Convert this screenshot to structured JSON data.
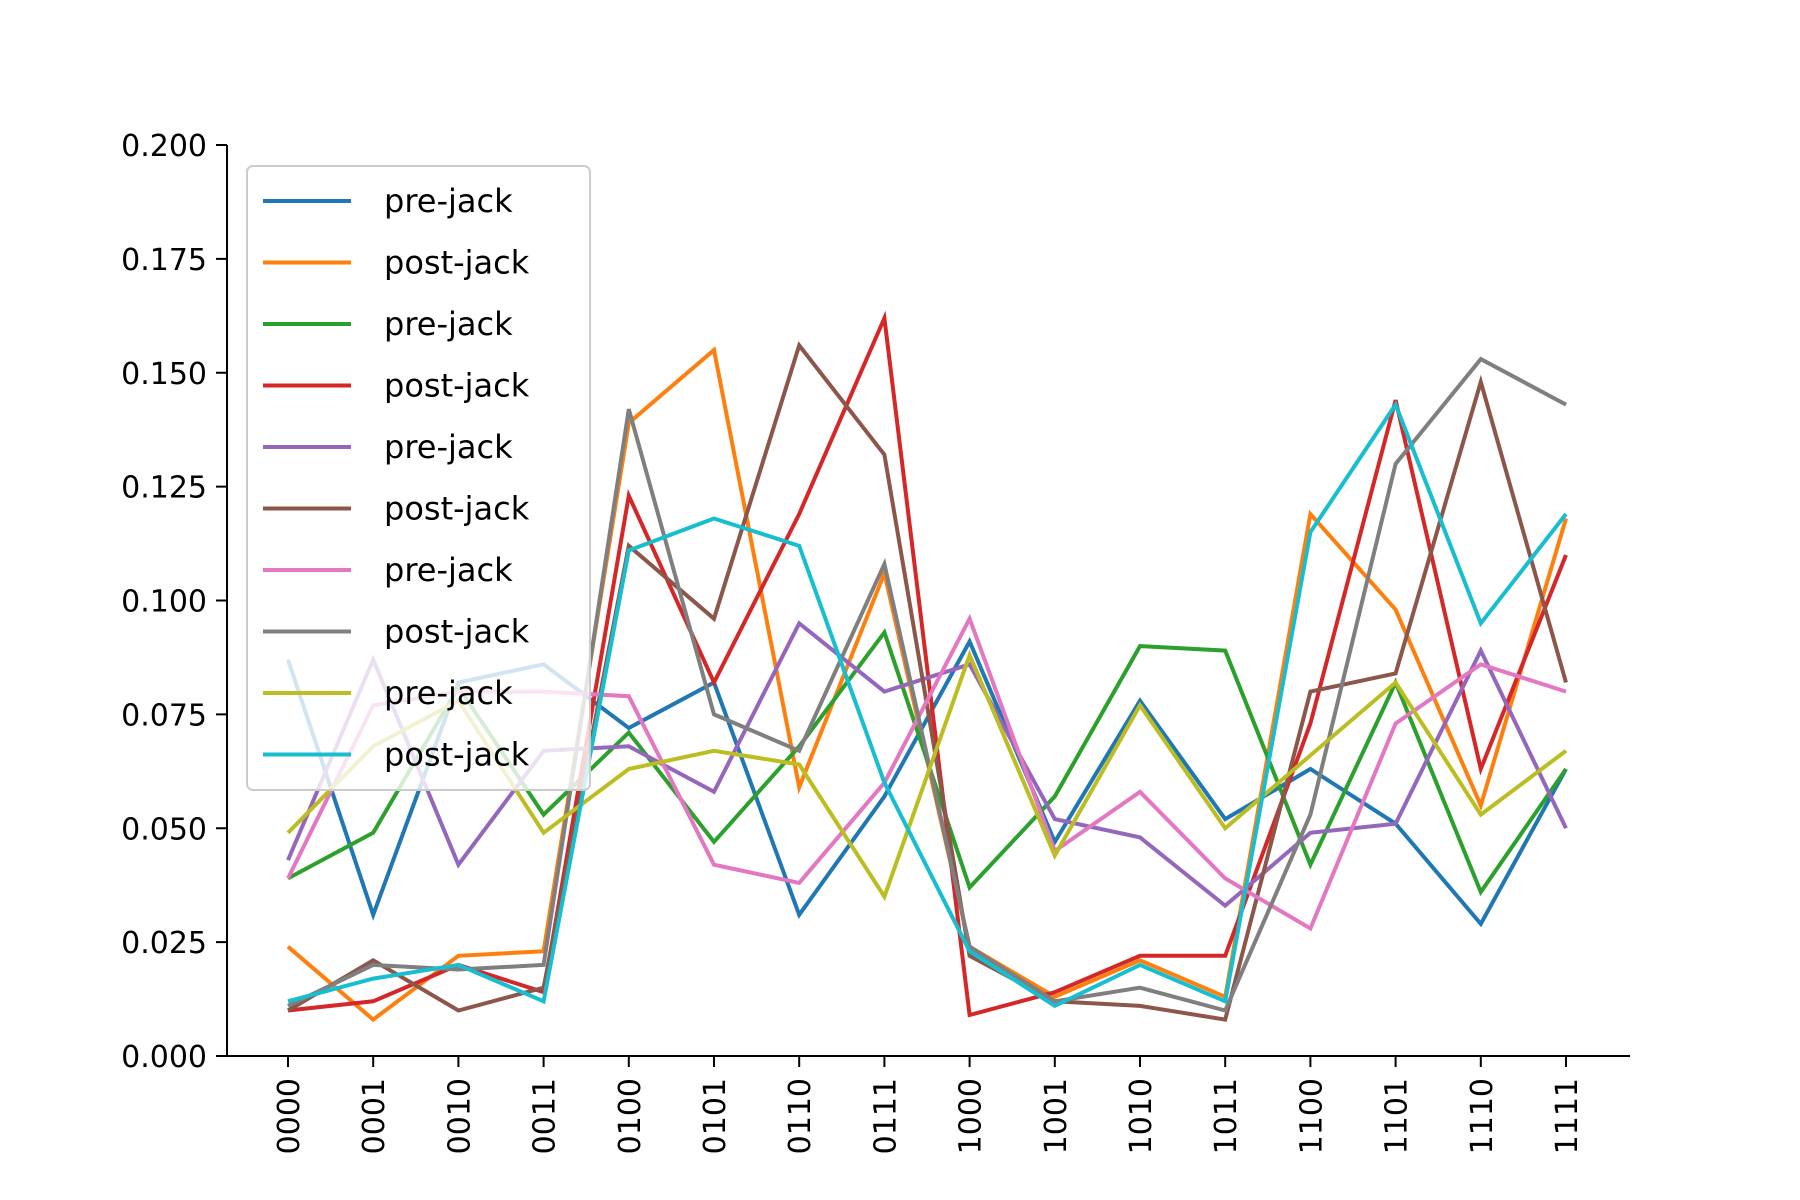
{
  "chart_data": {
    "type": "line",
    "title": "",
    "xlabel": "",
    "ylabel": "",
    "ylim": [
      0,
      0.2
    ],
    "yticks": [
      "0.000",
      "0.025",
      "0.050",
      "0.075",
      "0.100",
      "0.125",
      "0.150",
      "0.175",
      "0.200"
    ],
    "categories": [
      "0000",
      "0001",
      "0010",
      "0011",
      "0100",
      "0101",
      "0110",
      "0111",
      "1000",
      "1001",
      "1010",
      "1011",
      "1100",
      "1101",
      "1110",
      "1111"
    ],
    "grid": false,
    "legend_position": "upper-left",
    "series": [
      {
        "name": "pre-jack",
        "color": "#1f77b4",
        "values": [
          0.087,
          0.031,
          0.082,
          0.086,
          0.072,
          0.082,
          0.031,
          0.057,
          0.091,
          0.047,
          0.078,
          0.052,
          0.063,
          0.051,
          0.029,
          0.063
        ]
      },
      {
        "name": "post-jack",
        "color": "#ff7f0e",
        "values": [
          0.024,
          0.008,
          0.022,
          0.023,
          0.139,
          0.155,
          0.059,
          0.106,
          0.024,
          0.013,
          0.021,
          0.013,
          0.119,
          0.098,
          0.055,
          0.118
        ]
      },
      {
        "name": "pre-jack",
        "color": "#2ca02c",
        "values": [
          0.039,
          0.049,
          0.081,
          0.053,
          0.071,
          0.047,
          0.068,
          0.093,
          0.037,
          0.057,
          0.09,
          0.089,
          0.042,
          0.082,
          0.036,
          0.063
        ]
      },
      {
        "name": "post-jack",
        "color": "#d62728",
        "values": [
          0.01,
          0.012,
          0.02,
          0.014,
          0.123,
          0.082,
          0.119,
          0.162,
          0.009,
          0.014,
          0.022,
          0.022,
          0.073,
          0.144,
          0.063,
          0.11
        ]
      },
      {
        "name": "pre-jack",
        "color": "#9467bd",
        "values": [
          0.043,
          0.087,
          0.042,
          0.067,
          0.068,
          0.058,
          0.095,
          0.08,
          0.086,
          0.052,
          0.048,
          0.033,
          0.049,
          0.051,
          0.089,
          0.05
        ]
      },
      {
        "name": "post-jack",
        "color": "#8c564b",
        "values": [
          0.01,
          0.021,
          0.01,
          0.015,
          0.112,
          0.096,
          0.156,
          0.132,
          0.022,
          0.012,
          0.011,
          0.008,
          0.08,
          0.084,
          0.148,
          0.082
        ]
      },
      {
        "name": "pre-jack",
        "color": "#e377c2",
        "values": [
          0.039,
          0.077,
          0.08,
          0.08,
          0.079,
          0.042,
          0.038,
          0.06,
          0.096,
          0.045,
          0.058,
          0.039,
          0.028,
          0.073,
          0.086,
          0.08
        ]
      },
      {
        "name": "post-jack",
        "color": "#7f7f7f",
        "values": [
          0.011,
          0.02,
          0.019,
          0.02,
          0.142,
          0.075,
          0.067,
          0.108,
          0.024,
          0.012,
          0.015,
          0.01,
          0.053,
          0.13,
          0.153,
          0.143
        ]
      },
      {
        "name": "pre-jack",
        "color": "#bcbd22",
        "values": [
          0.049,
          0.068,
          0.078,
          0.049,
          0.063,
          0.067,
          0.064,
          0.035,
          0.088,
          0.044,
          0.077,
          0.05,
          0.066,
          0.082,
          0.053,
          0.067
        ]
      },
      {
        "name": "post-jack",
        "color": "#17becf",
        "values": [
          0.012,
          0.017,
          0.02,
          0.012,
          0.111,
          0.118,
          0.112,
          0.06,
          0.023,
          0.011,
          0.02,
          0.012,
          0.115,
          0.143,
          0.095,
          0.119
        ]
      }
    ]
  }
}
